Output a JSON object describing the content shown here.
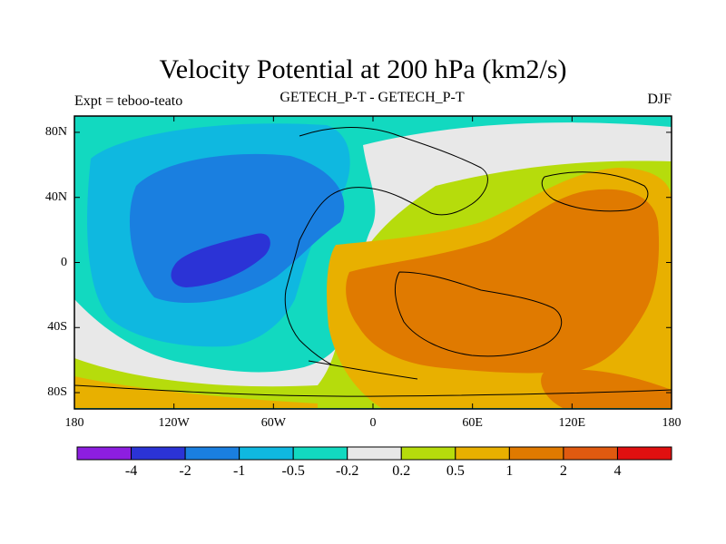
{
  "chart_data": {
    "type": "heatmap",
    "title": "Velocity Potential at 200 hPa (km2/s)",
    "left_string": "Expt = teboo-teato",
    "center_string": "GETECH_P-T - GETECH_P-T",
    "right_string": "DJF",
    "xlim": [
      -180,
      180
    ],
    "ylim": [
      -90,
      90
    ],
    "x_ticks": [
      {
        "value": -180,
        "label": "180"
      },
      {
        "value": -120,
        "label": "120W"
      },
      {
        "value": -60,
        "label": "60W"
      },
      {
        "value": 0,
        "label": "0"
      },
      {
        "value": 60,
        "label": "60E"
      },
      {
        "value": 120,
        "label": "120E"
      },
      {
        "value": 180,
        "label": "180"
      }
    ],
    "y_ticks": [
      {
        "value": 80,
        "label": "80N"
      },
      {
        "value": 40,
        "label": "40N"
      },
      {
        "value": 0,
        "label": "0"
      },
      {
        "value": -40,
        "label": "40S"
      },
      {
        "value": -80,
        "label": "80S"
      }
    ],
    "colorbar": {
      "levels": [
        "-4",
        "-2",
        "-1",
        "-0.5",
        "-0.2",
        "0.2",
        "0.5",
        "1",
        "2",
        "4"
      ],
      "colors": [
        "#8d1ee0",
        "#2b33d6",
        "#1a7fe0",
        "#0fb8e0",
        "#12d9c0",
        "#e8e8e8",
        "#b6dc0c",
        "#e8b000",
        "#e07a00",
        "#e05a10",
        "#e01010"
      ]
    },
    "field_regions": [
      {
        "name": "cyan-background",
        "value_range": "-0.5 to -0.2",
        "color": "#12d9c0"
      },
      {
        "name": "light-blue-pacific",
        "value_range": "-1 to -0.5",
        "color": "#0fb8e0"
      },
      {
        "name": "blue-pacific",
        "value_range": "-2 to -1",
        "color": "#1a7fe0"
      },
      {
        "name": "dark-blue-center",
        "value_range": "-4 to -2",
        "color": "#2b33d6"
      },
      {
        "name": "near-zero-band",
        "value_range": "-0.2 to 0.2",
        "color": "#e8e8e8"
      },
      {
        "name": "lime-band",
        "value_range": "0.2 to 0.5",
        "color": "#b6dc0c"
      },
      {
        "name": "amber-region",
        "value_range": "0.5 to 1",
        "color": "#e8b000"
      },
      {
        "name": "orange-maximum",
        "value_range": "1 to 2",
        "color": "#e07a00"
      }
    ]
  }
}
